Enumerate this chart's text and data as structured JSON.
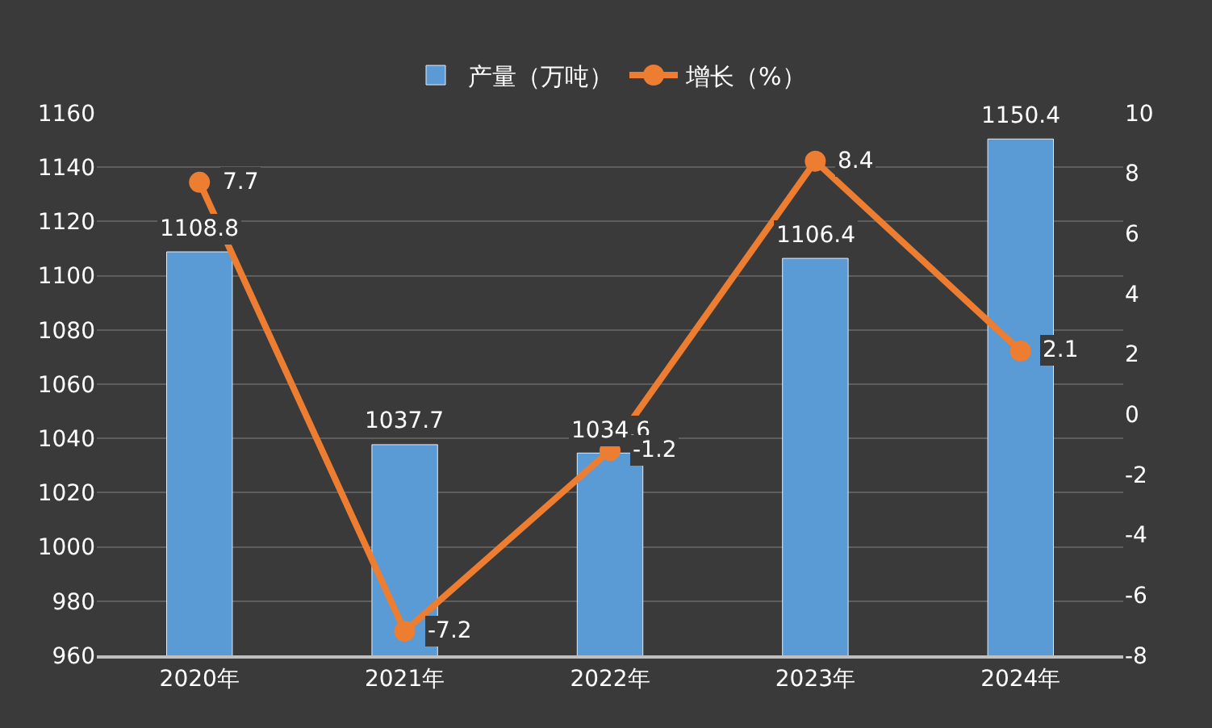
{
  "chart_data": {
    "type": "bar",
    "categories": [
      "2020年",
      "2021年",
      "2022年",
      "2023年",
      "2024年"
    ],
    "series": [
      {
        "name": "产量（万吨）",
        "color": "#5b9bd5",
        "values": [
          1108.8,
          1037.7,
          1034.6,
          1106.4,
          1150.4
        ]
      },
      {
        "name": "增长（%）",
        "type": "line",
        "axis": "y2",
        "color": "#ed7d31",
        "marker": "circle",
        "values": [
          7.7,
          -7.2,
          -1.2,
          8.4,
          2.1
        ]
      }
    ],
    "ylim": [
      960,
      1160
    ],
    "yticks": [
      960,
      980,
      1000,
      1020,
      1040,
      1060,
      1080,
      1100,
      1120,
      1140,
      1160
    ],
    "y2lim": [
      -8,
      10
    ],
    "y2ticks": [
      -8,
      -6,
      -4,
      -2,
      0,
      2,
      4,
      6,
      8,
      10
    ],
    "data_labels": true,
    "grid": "y",
    "legend": "top"
  }
}
